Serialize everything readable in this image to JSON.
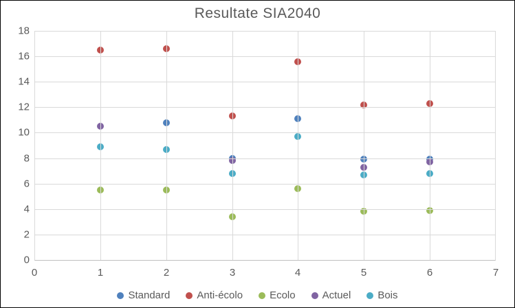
{
  "window": {
    "background": "#ffffff",
    "border_color": "#000000"
  },
  "chart_data": {
    "type": "scatter",
    "title": "Resultate SIA2040",
    "xlabel": "",
    "ylabel": "",
    "xlim": [
      0,
      7
    ],
    "ylim": [
      0,
      18
    ],
    "x_tick_labels": [
      "0",
      "1",
      "2",
      "3",
      "4",
      "5",
      "6",
      "7"
    ],
    "y_tick_labels": [
      "0",
      "2",
      "4",
      "6",
      "8",
      "10",
      "12",
      "14",
      "16",
      "18"
    ],
    "grid": true,
    "legend_position": "bottom",
    "series": [
      {
        "name": "Standard",
        "color": "#4f81bd",
        "points": [
          [
            2,
            10.8
          ],
          [
            3,
            7.95
          ],
          [
            4,
            11.1
          ],
          [
            5,
            7.9
          ],
          [
            6,
            7.9
          ]
        ]
      },
      {
        "name": "Anti-écolo",
        "color": "#c0504d",
        "points": [
          [
            1,
            16.5
          ],
          [
            2,
            16.6
          ],
          [
            3,
            11.3
          ],
          [
            4,
            15.6
          ],
          [
            5,
            12.2
          ],
          [
            6,
            12.3
          ]
        ]
      },
      {
        "name": "Ecolo",
        "color": "#9bbb59",
        "points": [
          [
            1,
            5.5
          ],
          [
            2,
            5.5
          ],
          [
            3,
            3.4
          ],
          [
            4,
            5.6
          ],
          [
            5,
            3.8
          ],
          [
            6,
            3.9
          ]
        ]
      },
      {
        "name": "Actuel",
        "color": "#8064a2",
        "points": [
          [
            1,
            10.5
          ],
          [
            3,
            7.8
          ],
          [
            5,
            7.3
          ],
          [
            6,
            7.7
          ]
        ]
      },
      {
        "name": "Bois",
        "color": "#4bacc6",
        "points": [
          [
            1,
            8.9
          ],
          [
            2,
            8.7
          ],
          [
            3,
            6.8
          ],
          [
            4,
            9.7
          ],
          [
            5,
            6.7
          ],
          [
            6,
            6.8
          ]
        ]
      }
    ],
    "style_colors": {
      "gridline": "#d9d9d9",
      "axis_line": "#bfbfbf",
      "text": "#595959"
    }
  }
}
